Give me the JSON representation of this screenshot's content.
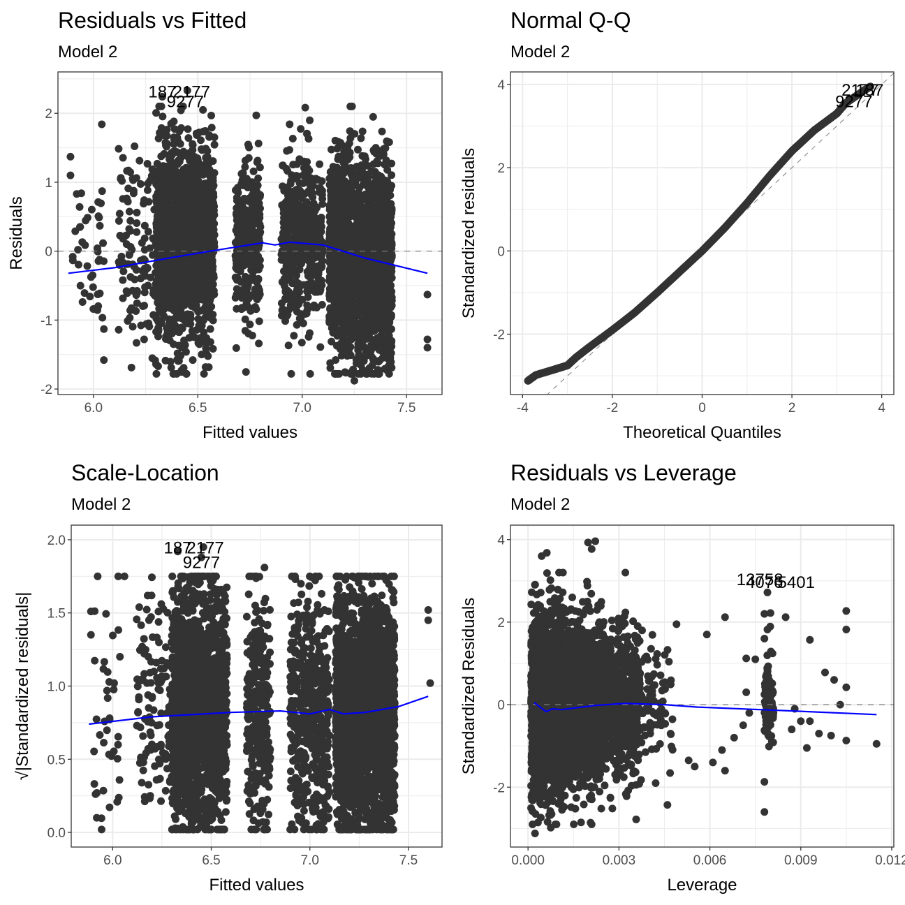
{
  "chart_data": [
    {
      "type": "scatter",
      "id": "resid-fitted",
      "title": "Residuals vs Fitted",
      "subtitle": "Model 2",
      "xlabel": "Fitted values",
      "ylabel": "Residuals",
      "xlim": [
        5.83,
        7.67
      ],
      "ylim": [
        -2.08,
        2.6
      ],
      "xticks": [
        6.0,
        6.5,
        7.0,
        7.5
      ],
      "xtick_labels": [
        "6.0",
        "6.5",
        "7.0",
        "7.5"
      ],
      "yticks": [
        -2,
        -1,
        0,
        1,
        2
      ],
      "ytick_labels": [
        "-2",
        "-1",
        "0",
        "1",
        "2"
      ],
      "grid": true,
      "reference_line": {
        "y": 0,
        "style": "dashed"
      },
      "smooth": {
        "color": "#0000ff",
        "x": [
          5.88,
          6.1,
          6.4,
          6.6,
          6.81,
          6.87,
          6.94,
          7.1,
          7.3,
          7.6
        ],
        "y": [
          -0.32,
          -0.24,
          -0.08,
          0.02,
          0.12,
          0.09,
          0.13,
          0.09,
          -0.1,
          -0.32
        ]
      },
      "clusters": [
        {
          "x": [
            5.9,
            6.05
          ],
          "n": 40,
          "ymean": 0.1,
          "ysd": 0.6
        },
        {
          "x": [
            6.12,
            6.3
          ],
          "n": 120,
          "ymean": 0.0,
          "ysd": 0.7
        },
        {
          "x": [
            6.3,
            6.44
          ],
          "n": 900,
          "ymean": 0.1,
          "ysd": 0.7
        },
        {
          "x": [
            6.44,
            6.58
          ],
          "n": 700,
          "ymean": 0.15,
          "ysd": 0.7
        },
        {
          "x": [
            6.68,
            6.8
          ],
          "n": 300,
          "ymean": 0.05,
          "ysd": 0.6
        },
        {
          "x": [
            6.9,
            7.1
          ],
          "n": 500,
          "ymean": 0.2,
          "ysd": 0.6
        },
        {
          "x": [
            7.13,
            7.3
          ],
          "n": 1200,
          "ymean": -0.1,
          "ysd": 0.7
        },
        {
          "x": [
            7.3,
            7.43
          ],
          "n": 1100,
          "ymean": -0.2,
          "ysd": 0.65
        }
      ],
      "points": [
        {
          "x": 5.89,
          "y": 1.37
        },
        {
          "x": 5.89,
          "y": 1.1
        },
        {
          "x": 5.92,
          "y": 0.83
        },
        {
          "x": 6.04,
          "y": 1.84
        },
        {
          "x": 6.05,
          "y": -1.58
        },
        {
          "x": 6.05,
          "y": -1.13
        },
        {
          "x": 6.3,
          "y": -1.64
        },
        {
          "x": 6.31,
          "y": -1.67
        },
        {
          "x": 7.6,
          "y": -0.63
        },
        {
          "x": 7.6,
          "y": -1.28
        },
        {
          "x": 7.6,
          "y": -1.4
        },
        {
          "x": 6.78,
          "y": 1.97
        },
        {
          "x": 7.25,
          "y": -1.88
        },
        {
          "x": 6.33,
          "y": 2.24
        },
        {
          "x": 6.45,
          "y": 2.33
        }
      ],
      "labels": [
        {
          "text": "187",
          "x": 6.33,
          "y": 2.32
        },
        {
          "text": "2177",
          "x": 6.47,
          "y": 2.32
        },
        {
          "text": "9277",
          "x": 6.44,
          "y": 2.18
        }
      ]
    },
    {
      "type": "scatter",
      "id": "normal-qq",
      "title": "Normal Q-Q",
      "subtitle": "Model 2",
      "xlabel": "Theoretical Quantiles",
      "ylabel": "Standardized residuals",
      "xlim": [
        -4.27,
        4.27
      ],
      "ylim": [
        -3.45,
        4.3
      ],
      "xticks": [
        -4,
        -2,
        0,
        2,
        4
      ],
      "xtick_labels": [
        "-4",
        "-2",
        "0",
        "2",
        "4"
      ],
      "yticks": [
        -2,
        0,
        2,
        4
      ],
      "ytick_labels": [
        "-2",
        "0",
        "2",
        "4"
      ],
      "grid": true,
      "reference_line": {
        "slope": 1,
        "intercept": 0,
        "style": "dashed"
      },
      "qq_curve": {
        "x": [
          -3.88,
          -3.7,
          -3.3,
          -3.0,
          -2.8,
          -2.5,
          -2.0,
          -1.5,
          -1.0,
          -0.5,
          0.0,
          0.5,
          1.0,
          1.5,
          2.0,
          2.5,
          3.0,
          3.2,
          3.6,
          3.75
        ],
        "y": [
          -3.12,
          -2.98,
          -2.85,
          -2.75,
          -2.55,
          -2.3,
          -1.9,
          -1.48,
          -1.0,
          -0.5,
          0.0,
          0.55,
          1.15,
          1.8,
          2.4,
          2.9,
          3.3,
          3.55,
          3.85,
          3.95
        ]
      },
      "labels": [
        {
          "text": "2177",
          "x": 3.52,
          "y": 3.88
        },
        {
          "text": "187",
          "x": 3.73,
          "y": 3.88
        },
        {
          "text": "9277",
          "x": 3.38,
          "y": 3.6
        }
      ]
    },
    {
      "type": "scatter",
      "id": "scale-location",
      "title": "Scale-Location",
      "subtitle": "Model 2",
      "xlabel": "Fitted values",
      "ylabel": "√|Standardized residuals|",
      "xlim": [
        5.79,
        7.67
      ],
      "ylim": [
        -0.1,
        2.1
      ],
      "xticks": [
        6.0,
        6.5,
        7.0,
        7.5
      ],
      "xtick_labels": [
        "6.0",
        "6.5",
        "7.0",
        "7.5"
      ],
      "yticks": [
        0.0,
        0.5,
        1.0,
        1.5,
        2.0
      ],
      "ytick_labels": [
        "0.0",
        "0.5",
        "1.0",
        "1.5",
        "2.0"
      ],
      "grid": true,
      "smooth": {
        "color": "#0000ff",
        "x": [
          5.88,
          6.2,
          6.6,
          6.85,
          7.0,
          7.1,
          7.17,
          7.28,
          7.45,
          7.6
        ],
        "y": [
          0.74,
          0.79,
          0.82,
          0.83,
          0.81,
          0.84,
          0.81,
          0.82,
          0.86,
          0.93
        ]
      },
      "clusters": [
        {
          "x": [
            5.9,
            6.06
          ],
          "n": 40,
          "ymean": 0.8,
          "ysd": 0.4
        },
        {
          "x": [
            6.12,
            6.3
          ],
          "n": 120,
          "ymean": 0.85,
          "ysd": 0.4
        },
        {
          "x": [
            6.3,
            6.44
          ],
          "n": 900,
          "ymean": 0.85,
          "ysd": 0.42
        },
        {
          "x": [
            6.44,
            6.58
          ],
          "n": 700,
          "ymean": 0.85,
          "ysd": 0.42
        },
        {
          "x": [
            6.68,
            6.8
          ],
          "n": 300,
          "ymean": 0.8,
          "ysd": 0.4
        },
        {
          "x": [
            6.9,
            7.1
          ],
          "n": 500,
          "ymean": 0.8,
          "ysd": 0.4
        },
        {
          "x": [
            7.13,
            7.3
          ],
          "n": 1200,
          "ymean": 0.82,
          "ysd": 0.4
        },
        {
          "x": [
            7.3,
            7.43
          ],
          "n": 1100,
          "ymean": 0.82,
          "ysd": 0.38
        }
      ],
      "points": [
        {
          "x": 5.89,
          "y": 1.51
        },
        {
          "x": 5.89,
          "y": 1.35
        },
        {
          "x": 5.92,
          "y": 0.27
        },
        {
          "x": 6.06,
          "y": 1.75
        },
        {
          "x": 7.6,
          "y": 1.52
        },
        {
          "x": 7.6,
          "y": 1.45
        },
        {
          "x": 7.61,
          "y": 1.02
        },
        {
          "x": 6.77,
          "y": 1.81
        },
        {
          "x": 6.33,
          "y": 1.92
        },
        {
          "x": 6.46,
          "y": 1.95
        },
        {
          "x": 6.45,
          "y": 1.88
        }
      ],
      "labels": [
        {
          "text": "187",
          "x": 6.33,
          "y": 1.95
        },
        {
          "text": "2177",
          "x": 6.47,
          "y": 1.95
        },
        {
          "text": "9277",
          "x": 6.45,
          "y": 1.85
        }
      ]
    },
    {
      "type": "scatter",
      "id": "resid-leverage",
      "title": "Residuals vs Leverage",
      "subtitle": "Model 2",
      "xlabel": "Leverage",
      "ylabel": "Standardized Residuals",
      "xlim": [
        -0.00058,
        0.01207
      ],
      "ylim": [
        -3.45,
        4.35
      ],
      "xticks": [
        0.0,
        0.003,
        0.006,
        0.009,
        0.012
      ],
      "xtick_labels": [
        "0.000",
        "0.003",
        "0.006",
        "0.009",
        "0.012"
      ],
      "yticks": [
        -2,
        0,
        2,
        4
      ],
      "ytick_labels": [
        "-2",
        "0",
        "2",
        "4"
      ],
      "grid": true,
      "reference_line": {
        "y": 0,
        "style": "dashed"
      },
      "smooth": {
        "color": "#0000ff",
        "x": [
          0.0002,
          0.0006,
          0.0008,
          0.0011,
          0.0022,
          0.0032,
          0.0045,
          0.0056,
          0.008,
          0.0115
        ],
        "y": [
          0.05,
          -0.17,
          -0.1,
          -0.12,
          -0.02,
          0.03,
          0.0,
          -0.06,
          -0.13,
          -0.24
        ]
      },
      "clusters": [
        {
          "x": [
            0.0001,
            0.0012
          ],
          "n": 2200,
          "ymean": 0.0,
          "ysd": 1.0
        },
        {
          "x": [
            0.0012,
            0.0025
          ],
          "n": 1300,
          "ymean": 0.0,
          "ysd": 0.95
        },
        {
          "x": [
            0.0025,
            0.0037
          ],
          "n": 600,
          "ymean": 0.0,
          "ysd": 0.9
        },
        {
          "x": [
            0.0037,
            0.0048
          ],
          "n": 80,
          "ymean": 0.0,
          "ysd": 0.8
        },
        {
          "x": [
            0.0078,
            0.0081
          ],
          "n": 90,
          "ymean": 0.0,
          "ysd": 0.5
        }
      ],
      "points": [
        {
          "x": 0.00062,
          "y": 3.68
        },
        {
          "x": 0.00045,
          "y": 3.6
        },
        {
          "x": 0.00198,
          "y": 3.93
        },
        {
          "x": 0.00222,
          "y": 3.96
        },
        {
          "x": 0.0021,
          "y": 3.77
        },
        {
          "x": 0.00023,
          "y": -3.12
        },
        {
          "x": 0.00075,
          "y": -2.98
        },
        {
          "x": 0.0049,
          "y": 1.95
        },
        {
          "x": 0.0065,
          "y": 2.12
        },
        {
          "x": 0.0059,
          "y": 1.7
        },
        {
          "x": 0.0072,
          "y": 1.12
        },
        {
          "x": 0.0075,
          "y": 1.1
        },
        {
          "x": 0.0079,
          "y": 2.72
        },
        {
          "x": 0.0078,
          "y": 2.2
        },
        {
          "x": 0.008,
          "y": 2.22
        },
        {
          "x": 0.0085,
          "y": 2.12
        },
        {
          "x": 0.0079,
          "y": 1.82
        },
        {
          "x": 0.0078,
          "y": 1.6
        },
        {
          "x": 0.0078,
          "y": -1.87
        },
        {
          "x": 0.0078,
          "y": -2.6
        },
        {
          "x": 0.0093,
          "y": 1.57
        },
        {
          "x": 0.0098,
          "y": 0.78
        },
        {
          "x": 0.0101,
          "y": 0.6
        },
        {
          "x": 0.0105,
          "y": 2.27
        },
        {
          "x": 0.0105,
          "y": 1.82
        },
        {
          "x": 0.0105,
          "y": 0.42
        },
        {
          "x": 0.0105,
          "y": -0.87
        },
        {
          "x": 0.0115,
          "y": -0.95
        },
        {
          "x": 0.0093,
          "y": -0.4
        },
        {
          "x": 0.0092,
          "y": -1.05
        },
        {
          "x": 0.0096,
          "y": -0.7
        },
        {
          "x": 0.01,
          "y": -0.75
        },
        {
          "x": 0.0072,
          "y": 0.3
        },
        {
          "x": 0.0071,
          "y": -0.5
        },
        {
          "x": 0.0073,
          "y": -0.2
        },
        {
          "x": 0.0088,
          "y": -0.1
        },
        {
          "x": 0.0087,
          "y": -0.6
        },
        {
          "x": 0.009,
          "y": -0.4
        },
        {
          "x": 0.0103,
          "y": 0.0
        },
        {
          "x": 0.0065,
          "y": -1.6
        },
        {
          "x": 0.0064,
          "y": -1.1
        },
        {
          "x": 0.0068,
          "y": -0.8
        },
        {
          "x": 0.0053,
          "y": -1.35
        },
        {
          "x": 0.0055,
          "y": -1.5
        },
        {
          "x": 0.0061,
          "y": -1.4
        }
      ],
      "labels": [
        {
          "text": "13758",
          "x": 0.00765,
          "y": 3.05
        },
        {
          "text": "4076",
          "x": 0.0078,
          "y": 2.98
        },
        {
          "text": "5401",
          "x": 0.00885,
          "y": 2.98
        }
      ]
    }
  ]
}
